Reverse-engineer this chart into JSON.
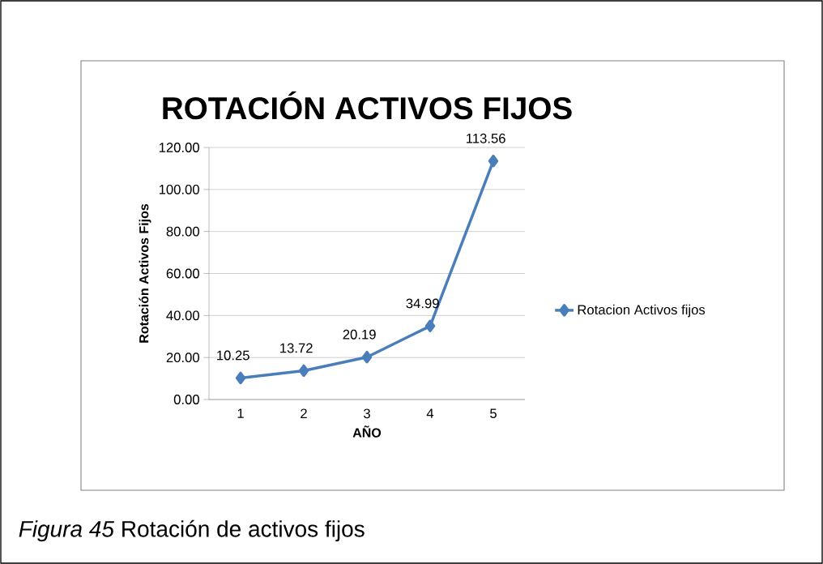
{
  "chart_data": {
    "type": "line",
    "title": "ROTACIÓN ACTIVOS FIJOS",
    "xlabel": "AÑO",
    "ylabel": "Rotación Activos Fijos",
    "categories": [
      "1",
      "2",
      "3",
      "4",
      "5"
    ],
    "series": [
      {
        "name": "Rotacion Activos fijos",
        "color": "#4a7ebb",
        "values": [
          10.25,
          13.72,
          20.19,
          34.99,
          113.56
        ]
      }
    ],
    "ylim": [
      0,
      120
    ],
    "yticks": [
      {
        "value": 0,
        "label": "0.00"
      },
      {
        "value": 20,
        "label": "20.00"
      },
      {
        "value": 40,
        "label": "40.00"
      },
      {
        "value": 60,
        "label": "60.00"
      },
      {
        "value": 80,
        "label": "80.00"
      },
      {
        "value": 100,
        "label": "100.00"
      },
      {
        "value": 120,
        "label": "120.00"
      }
    ],
    "grid": "y",
    "legend": "right",
    "marker": "diamond",
    "line_style": "solid",
    "data_labels": true,
    "annotations": [
      "*Figura 45* Rotación de activos fijos"
    ]
  }
}
